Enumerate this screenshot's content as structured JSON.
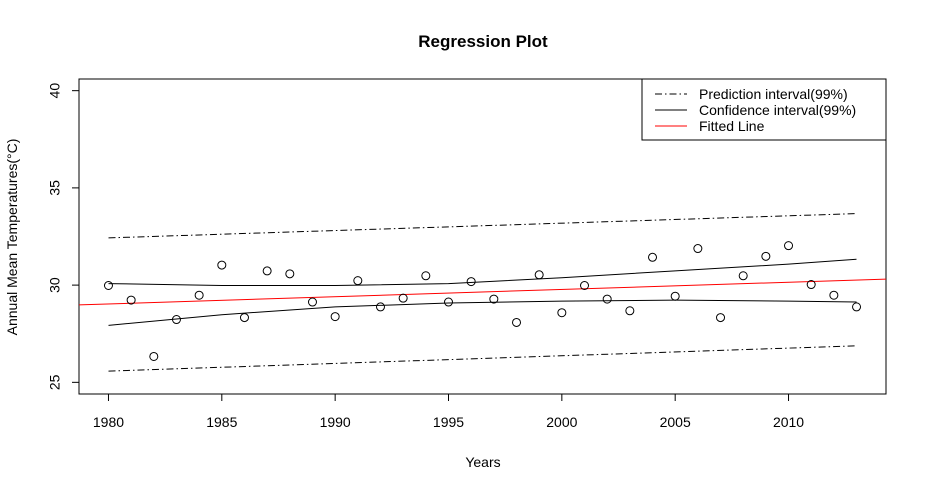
{
  "chart_data": {
    "type": "scatter",
    "title": "Regression Plot",
    "xlabel": "Years",
    "ylabel": "Annual Mean Temperatures(°C)",
    "xlim": [
      1978.7,
      2014.3
    ],
    "ylim": [
      24.4,
      40.6
    ],
    "x_ticks": [
      1980,
      1985,
      1990,
      1995,
      2000,
      2005,
      2010
    ],
    "y_ticks": [
      25,
      30,
      35,
      40
    ],
    "grid": false,
    "legend_position": "top-right",
    "legend": [
      {
        "label": "Prediction interval(99%)",
        "color": "#000000",
        "style": "dotdash"
      },
      {
        "label": "Confidence interval(99%)",
        "color": "#000000",
        "style": "solid"
      },
      {
        "label": "Fitted Line",
        "color": "#ff0000",
        "style": "solid"
      }
    ],
    "points": {
      "x": [
        1980,
        1981,
        1982,
        1983,
        1984,
        1985,
        1986,
        1987,
        1988,
        1989,
        1990,
        1991,
        1992,
        1993,
        1994,
        1995,
        1996,
        1997,
        1998,
        1999,
        2000,
        2001,
        2002,
        2003,
        2004,
        2005,
        2006,
        2007,
        2008,
        2009,
        2010,
        2011,
        2012,
        2013
      ],
      "y": [
        29.98,
        29.23,
        26.33,
        28.23,
        29.48,
        31.03,
        28.33,
        30.73,
        30.58,
        29.13,
        28.38,
        30.23,
        28.88,
        29.33,
        30.48,
        29.13,
        30.18,
        29.28,
        28.08,
        30.53,
        28.58,
        29.98,
        29.28,
        28.68,
        31.43,
        29.43,
        31.88,
        28.33,
        30.48,
        31.48,
        32.03,
        30.03,
        29.48,
        28.88
      ]
    },
    "fitted_line": {
      "x": [
        1978.7,
        2014.3
      ],
      "y": [
        28.98,
        30.31
      ]
    },
    "confidence_upper": {
      "x": [
        1980,
        1985,
        1990,
        1995,
        2000,
        2005,
        2010,
        2013
      ],
      "y": [
        30.08,
        29.98,
        29.98,
        30.08,
        30.38,
        30.73,
        31.08,
        31.33
      ]
    },
    "confidence_lower": {
      "x": [
        1980,
        1985,
        1990,
        1995,
        2000,
        2005,
        2010,
        2013
      ],
      "y": [
        27.93,
        28.48,
        28.88,
        29.08,
        29.18,
        29.23,
        29.18,
        29.13
      ]
    },
    "prediction_upper": {
      "x": [
        1980,
        2013
      ],
      "y": [
        32.43,
        33.68
      ]
    },
    "prediction_lower": {
      "x": [
        1980,
        2013
      ],
      "y": [
        25.58,
        26.88
      ]
    }
  }
}
